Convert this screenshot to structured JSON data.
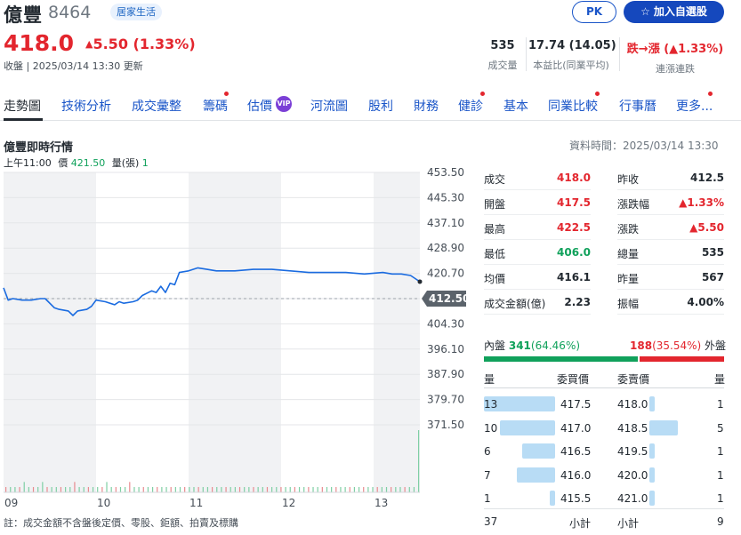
{
  "header": {
    "name": "億豐",
    "code": "8464",
    "tag": "居家生活",
    "pk_label": "PK",
    "add_label": "加入自選股",
    "price": "418.0",
    "change": "5.50 (1.33%)",
    "updated": "收盤 | 2025/03/14 13:30 更新"
  },
  "summary": [
    {
      "value": "535",
      "label": "成交量"
    },
    {
      "value": "17.74 (14.05)",
      "label": "本益比(同業平均)"
    },
    {
      "value": "跌→漲 (▲1.33%)",
      "label": "連漲連跌"
    }
  ],
  "tabs": [
    {
      "label": "走勢圖",
      "dot": false,
      "vip": false
    },
    {
      "label": "技術分析",
      "dot": false,
      "vip": false
    },
    {
      "label": "成交彙整",
      "dot": false,
      "vip": false
    },
    {
      "label": "籌碼",
      "dot": true,
      "vip": false
    },
    {
      "label": "估價",
      "dot": false,
      "vip": true
    },
    {
      "label": "河流圖",
      "dot": false,
      "vip": false
    },
    {
      "label": "股利",
      "dot": false,
      "vip": false
    },
    {
      "label": "財務",
      "dot": false,
      "vip": false
    },
    {
      "label": "健診",
      "dot": true,
      "vip": false
    },
    {
      "label": "基本",
      "dot": false,
      "vip": false
    },
    {
      "label": "同業比較",
      "dot": true,
      "vip": false
    },
    {
      "label": "行事曆",
      "dot": false,
      "vip": false
    },
    {
      "label": "更多...",
      "dot": true,
      "vip": false
    }
  ],
  "vip_label": "VIP",
  "section_title": "億豐即時行情",
  "data_time": "資料時間：2025/03/14 13:30",
  "hover": {
    "time": "上午11:00",
    "price_label": "價",
    "price": "421.50",
    "volume_label": "量(張)",
    "volume": "1"
  },
  "chart_data": {
    "type": "line",
    "yticks": [
      "453.50",
      "445.30",
      "437.10",
      "428.90",
      "420.70",
      "412.50",
      "404.30",
      "396.10",
      "387.90",
      "379.70",
      "371.50"
    ],
    "ylim": [
      371.5,
      453.5
    ],
    "xticks": [
      "09",
      "10",
      "11",
      "12",
      "13"
    ],
    "reference_price": 412.5,
    "reference_label": "412.50",
    "series": [
      {
        "x_hours": [
          9.0,
          9.05,
          9.1,
          9.2,
          9.3,
          9.4,
          9.45,
          9.55,
          9.6,
          9.7,
          9.75,
          9.8,
          9.9,
          9.95,
          10.0,
          10.1,
          10.2,
          10.25,
          10.3,
          10.4,
          10.45,
          10.5,
          10.6,
          10.65,
          10.7,
          10.75,
          10.8,
          10.85,
          10.9,
          11.0,
          11.1,
          11.2,
          11.3,
          11.5,
          11.7,
          11.9,
          12.1,
          12.3,
          12.5,
          12.7,
          12.9,
          13.1,
          13.2,
          13.3,
          13.4,
          13.5
        ],
        "prices": [
          416.0,
          412.0,
          412.5,
          412.0,
          412.0,
          412.5,
          412.5,
          409.5,
          409.0,
          408.5,
          407.0,
          408.5,
          409.0,
          410.0,
          412.0,
          411.5,
          410.5,
          411.5,
          411.0,
          411.5,
          412.0,
          413.5,
          415.0,
          414.5,
          416.5,
          414.5,
          417.5,
          417.0,
          421.0,
          421.5,
          422.5,
          422.0,
          421.5,
          421.5,
          422.0,
          422.0,
          421.5,
          421.0,
          421.0,
          421.0,
          420.5,
          421.0,
          420.5,
          420.5,
          420.0,
          418.0
        ]
      }
    ],
    "volume": [
      1,
      1,
      1,
      1,
      2,
      1,
      1,
      1,
      2,
      1,
      1,
      1,
      1,
      1,
      1,
      2,
      1,
      1,
      1,
      1,
      1,
      1,
      2,
      1,
      1,
      1,
      1,
      2,
      1,
      1,
      1,
      1,
      1,
      1,
      1,
      1,
      1,
      1,
      1,
      1,
      1,
      1,
      1,
      1,
      1,
      1,
      1,
      1,
      1,
      1,
      1,
      1,
      1,
      1,
      1,
      1,
      1,
      1,
      1,
      1,
      1,
      1,
      1,
      1,
      1,
      1,
      1,
      1,
      1,
      1,
      1,
      1,
      1,
      1,
      1,
      1,
      1,
      1,
      1,
      1,
      1,
      1,
      1,
      1,
      1,
      1,
      1,
      1,
      1,
      1,
      12
    ]
  },
  "stats_left": [
    {
      "label": "成交",
      "value": "418.0",
      "color": "#e3262e"
    },
    {
      "label": "開盤",
      "value": "417.5",
      "color": "#e3262e"
    },
    {
      "label": "最高",
      "value": "422.5",
      "color": "#e3262e"
    },
    {
      "label": "最低",
      "value": "406.0",
      "color": "#10a15b"
    },
    {
      "label": "均價",
      "value": "416.1",
      "color": "#232a31"
    },
    {
      "label": "成交金額(億)",
      "value": "2.23",
      "color": "#232a31"
    }
  ],
  "stats_right": [
    {
      "label": "昨收",
      "value": "412.5",
      "color": "#232a31"
    },
    {
      "label": "漲跌幅",
      "value": "▲1.33%",
      "color": "#e3262e"
    },
    {
      "label": "漲跌",
      "value": "▲5.50",
      "color": "#e3262e"
    },
    {
      "label": "總量",
      "value": "535",
      "color": "#232a31"
    },
    {
      "label": "昨量",
      "value": "567",
      "color": "#232a31"
    },
    {
      "label": "振幅",
      "value": "4.00%",
      "color": "#232a31"
    }
  ],
  "inout": {
    "in_label": "內盤",
    "in_value": "341",
    "in_pct": "(64.46%)",
    "out_value": "188",
    "out_pct": "(35.54%)",
    "out_label": "外盤",
    "in_fraction": 0.6446
  },
  "orderbook": {
    "bid_headers": [
      "量",
      "委買價"
    ],
    "ask_headers": [
      "委賣價",
      "量"
    ],
    "bids": [
      {
        "qty": "13",
        "price": "417.5",
        "fraction": 1.0
      },
      {
        "qty": "10",
        "price": "417.0",
        "fraction": 0.77
      },
      {
        "qty": "6",
        "price": "416.5",
        "fraction": 0.46
      },
      {
        "qty": "7",
        "price": "416.0",
        "fraction": 0.54
      },
      {
        "qty": "1",
        "price": "415.5",
        "fraction": 0.08
      }
    ],
    "asks": [
      {
        "price": "418.0",
        "qty": "1",
        "fraction": 0.2
      },
      {
        "price": "418.5",
        "qty": "5",
        "fraction": 1.0
      },
      {
        "price": "419.5",
        "qty": "1",
        "fraction": 0.2
      },
      {
        "price": "420.0",
        "qty": "1",
        "fraction": 0.2
      },
      {
        "price": "421.0",
        "qty": "1",
        "fraction": 0.2
      }
    ],
    "bid_total": "37",
    "bid_total_label": "小計",
    "ask_total_label": "小計",
    "ask_total": "9"
  },
  "footer_note": "註：成交金額不含盤後定價、零股、鉅額、拍賣及標購",
  "colors": {
    "up": "#e3262e",
    "down": "#10a15b",
    "line": "#1a6be0",
    "accent": "#1548bd"
  }
}
